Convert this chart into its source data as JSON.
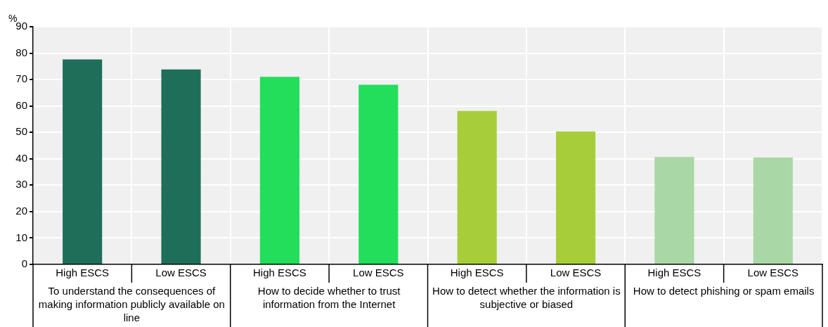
{
  "chart_data": {
    "type": "bar",
    "ylabel": "%",
    "categories": [
      "High ESCS",
      "Low ESCS",
      "High ESCS",
      "Low ESCS",
      "High ESCS",
      "Low ESCS",
      "High ESCS",
      "Low ESCS"
    ],
    "values": [
      77.6,
      73.8,
      71.0,
      68.0,
      58.1,
      50.3,
      40.7,
      40.5
    ],
    "colors": [
      "#1f6e5a",
      "#1f6e5a",
      "#22de5a",
      "#22de5a",
      "#a8cd3a",
      "#a8cd3a",
      "#a9d7a5",
      "#a9d7a5"
    ],
    "ylim": [
      0,
      90
    ],
    "yticks": [
      0,
      10,
      20,
      30,
      40,
      50,
      60,
      70,
      80,
      90
    ],
    "grid": true,
    "legend": false,
    "annotations": [
      "To understand the consequences of making information publicly available on line",
      "How to decide whether to trust information from the Internet",
      "How to detect whether the information is subjective or biased",
      "How to detect phishing or spam emails"
    ]
  }
}
